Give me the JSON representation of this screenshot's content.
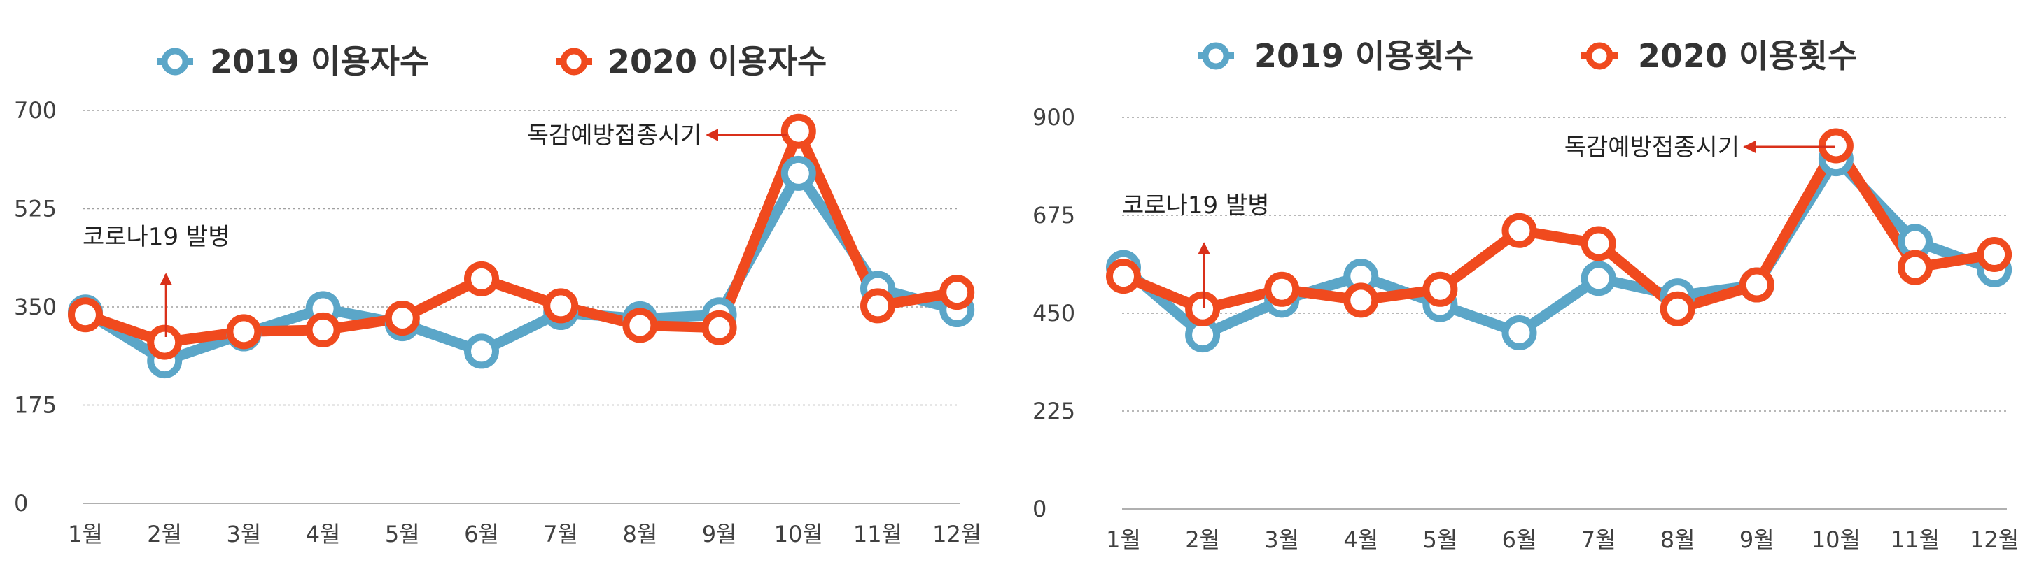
{
  "colors": {
    "series_2019": "#5BA6C8",
    "series_2020": "#F04A1E",
    "annotation_arrow": "#D9301A",
    "grid": "#A0A0A0",
    "axis": "#B0B0B0"
  },
  "chart_data": [
    {
      "type": "line",
      "categories": [
        "1월",
        "2월",
        "3월",
        "4월",
        "5월",
        "6월",
        "7월",
        "8월",
        "9월",
        "10월",
        "11월",
        "12월"
      ],
      "ylim": [
        0,
        700
      ],
      "yticks": [
        0,
        175,
        350,
        525,
        700
      ],
      "grid": true,
      "legend_position": "top",
      "series": [
        {
          "name": "2019 이용자수",
          "values": [
            341,
            254,
            302,
            347,
            320,
            271,
            340,
            329,
            336,
            588,
            383,
            345
          ]
        },
        {
          "name": "2020 이용자수",
          "values": [
            336,
            287,
            306,
            309,
            330,
            400,
            352,
            317,
            313,
            663,
            352,
            376
          ]
        }
      ],
      "annotations": [
        {
          "text": "코로나19 발병",
          "category": "2월",
          "direction": "up"
        },
        {
          "text": "독감예방접종시기",
          "category": "10월",
          "direction": "left"
        }
      ]
    },
    {
      "type": "line",
      "categories": [
        "1월",
        "2월",
        "3월",
        "4월",
        "5월",
        "6월",
        "7월",
        "8월",
        "9월",
        "10월",
        "11월",
        "12월"
      ],
      "ylim": [
        0,
        900
      ],
      "yticks": [
        0,
        225,
        450,
        675,
        900
      ],
      "grid": true,
      "legend_position": "top",
      "series": [
        {
          "name": "2019 이용횟수",
          "values": [
            555,
            400,
            480,
            535,
            470,
            405,
            530,
            490,
            515,
            805,
            615,
            550
          ]
        },
        {
          "name": "2020 이용횟수",
          "values": [
            535,
            460,
            505,
            480,
            505,
            640,
            610,
            460,
            515,
            835,
            555,
            585
          ]
        }
      ],
      "annotations": [
        {
          "text": "코로나19 발병",
          "category": "2월",
          "direction": "up"
        },
        {
          "text": "독감예방접종시기",
          "category": "10월",
          "direction": "left"
        }
      ]
    }
  ]
}
